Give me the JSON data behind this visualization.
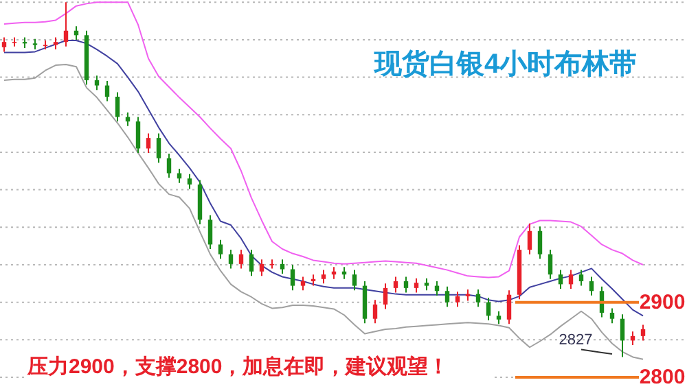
{
  "chart_data": {
    "type": "candlestick",
    "title": "现货白银4小时布林带",
    "annotations": [
      "压力2900，支撑2800，加息在即，建议观望！",
      "2827"
    ],
    "categories": [
      null,
      null,
      null,
      null,
      null,
      null,
      null,
      null,
      null,
      null,
      null,
      null,
      null,
      null,
      null,
      null,
      null,
      null,
      null,
      null,
      null,
      null,
      null,
      null,
      null,
      null,
      null,
      null,
      null,
      null,
      null,
      null,
      null,
      null,
      null,
      null,
      null,
      null,
      null,
      null,
      null,
      null,
      null,
      null,
      null,
      null,
      null,
      null,
      null,
      null,
      null,
      null,
      null,
      null,
      null,
      null,
      null,
      null,
      null,
      null,
      null,
      null,
      null
    ],
    "ohlc": [
      [
        3240,
        3253,
        3234,
        3247
      ],
      [
        3247,
        3253,
        3241,
        3247
      ],
      [
        3247,
        3253,
        3239,
        3245
      ],
      [
        3245,
        3251,
        3237,
        3243
      ],
      [
        3243,
        3249,
        3237,
        3243
      ],
      [
        3243,
        3253,
        3237,
        3247
      ],
      [
        3247,
        3300,
        3241,
        3262
      ],
      [
        3262,
        3268,
        3250,
        3256
      ],
      [
        3256,
        3262,
        3190,
        3196
      ],
      [
        3196,
        3202,
        3183,
        3189
      ],
      [
        3189,
        3195,
        3168,
        3174
      ],
      [
        3174,
        3180,
        3141,
        3147
      ],
      [
        3147,
        3153,
        3135,
        3141
      ],
      [
        3141,
        3147,
        3099,
        3105
      ],
      [
        3105,
        3125,
        3099,
        3119
      ],
      [
        3119,
        3125,
        3086,
        3092
      ],
      [
        3092,
        3098,
        3066,
        3072
      ],
      [
        3072,
        3078,
        3059,
        3065
      ],
      [
        3065,
        3071,
        3051,
        3057
      ],
      [
        3057,
        3063,
        3004,
        3010
      ],
      [
        3010,
        3016,
        2971,
        2977
      ],
      [
        2977,
        2983,
        2958,
        2964
      ],
      [
        2964,
        2970,
        2945,
        2951
      ],
      [
        2951,
        2970,
        2945,
        2964
      ],
      [
        2964,
        2970,
        2935,
        2941
      ],
      [
        2941,
        2957,
        2935,
        2951
      ],
      [
        2951,
        2957,
        2945,
        2951
      ],
      [
        2951,
        2957,
        2938,
        2944
      ],
      [
        2944,
        2950,
        2916,
        2922
      ],
      [
        2922,
        2934,
        2916,
        2928
      ],
      [
        2928,
        2937,
        2922,
        2931
      ],
      [
        2931,
        2943,
        2925,
        2937
      ],
      [
        2937,
        2947,
        2931,
        2941
      ],
      [
        2941,
        2947,
        2931,
        2937
      ],
      [
        2937,
        2943,
        2916,
        2922
      ],
      [
        2922,
        2928,
        2872,
        2878
      ],
      [
        2878,
        2903,
        2872,
        2897
      ],
      [
        2897,
        2925,
        2891,
        2919
      ],
      [
        2919,
        2934,
        2913,
        2928
      ],
      [
        2928,
        2934,
        2913,
        2919
      ],
      [
        2919,
        2932,
        2913,
        2926
      ],
      [
        2926,
        2932,
        2916,
        2922
      ],
      [
        2922,
        2928,
        2909,
        2915
      ],
      [
        2915,
        2921,
        2894,
        2900
      ],
      [
        2900,
        2914,
        2894,
        2908
      ],
      [
        2908,
        2917,
        2902,
        2911
      ],
      [
        2911,
        2917,
        2894,
        2900
      ],
      [
        2900,
        2906,
        2876,
        2882
      ],
      [
        2882,
        2888,
        2871,
        2877
      ],
      [
        2877,
        2916,
        2871,
        2910
      ],
      [
        2910,
        2976,
        2904,
        2970
      ],
      [
        2970,
        3005,
        2964,
        2995
      ],
      [
        2995,
        3001,
        2958,
        2964
      ],
      [
        2964,
        2970,
        2931,
        2937
      ],
      [
        2937,
        2943,
        2918,
        2924
      ],
      [
        2924,
        2943,
        2918,
        2937
      ],
      [
        2937,
        2943,
        2922,
        2928
      ],
      [
        2928,
        2934,
        2909,
        2915
      ],
      [
        2915,
        2921,
        2880,
        2886
      ],
      [
        2886,
        2892,
        2872,
        2878
      ],
      [
        2878,
        2884,
        2827,
        2849
      ],
      [
        2849,
        2861,
        2843,
        2855
      ],
      [
        2855,
        2870,
        2849,
        2864
      ]
    ],
    "colors": [
      "#e8202a",
      "#e8202a",
      "#1a8c1a",
      "#1a8c1a",
      "#e8202a",
      "#e8202a",
      "#e8202a",
      "#1a8c1a",
      "#1a8c1a",
      "#1a8c1a",
      "#1a8c1a",
      "#1a8c1a",
      "#1a8c1a",
      "#1a8c1a",
      "#e8202a",
      "#1a8c1a",
      "#1a8c1a",
      "#1a8c1a",
      "#1a8c1a",
      "#1a8c1a",
      "#1a8c1a",
      "#1a8c1a",
      "#1a8c1a",
      "#e8202a",
      "#1a8c1a",
      "#e8202a",
      "#e8202a",
      "#1a8c1a",
      "#1a8c1a",
      "#e8202a",
      "#e8202a",
      "#e8202a",
      "#e8202a",
      "#1a8c1a",
      "#1a8c1a",
      "#1a8c1a",
      "#e8202a",
      "#e8202a",
      "#e8202a",
      "#1a8c1a",
      "#e8202a",
      "#1a8c1a",
      "#1a8c1a",
      "#1a8c1a",
      "#e8202a",
      "#e8202a",
      "#1a8c1a",
      "#1a8c1a",
      "#1a8c1a",
      "#e8202a",
      "#e8202a",
      "#e8202a",
      "#1a8c1a",
      "#1a8c1a",
      "#1a8c1a",
      "#e8202a",
      "#1a8c1a",
      "#1a8c1a",
      "#1a8c1a",
      "#1a8c1a",
      "#1a8c1a",
      "#e8202a",
      "#e8202a"
    ],
    "series": [
      {
        "type": "line",
        "color": "#f060f0",
        "values": [
          3271,
          3272,
          3273,
          3273,
          3274,
          3276,
          3285,
          3295,
          3298,
          3300,
          3300,
          3300,
          3300,
          3270,
          3225,
          3201,
          3187,
          3173,
          3160,
          3147,
          3132,
          3118,
          3105,
          3075,
          3039,
          3009,
          2981,
          2971,
          2965,
          2961,
          2956,
          2954,
          2952,
          2951,
          2952,
          2953,
          2954,
          2955,
          2954,
          2953,
          2952,
          2949,
          2946,
          2943,
          2939,
          2935,
          2934,
          2933,
          2934,
          2942,
          2987,
          3004,
          3009,
          3009,
          3008,
          3007,
          3001,
          2989,
          2977,
          2970,
          2965,
          2956,
          2950
        ]
      },
      {
        "type": "line",
        "color": "#4040a0",
        "values": [
          3233,
          3233,
          3233,
          3234,
          3239,
          3244,
          3249,
          3249,
          3245,
          3237,
          3228,
          3218,
          3200,
          3181,
          3157,
          3133,
          3112,
          3096,
          3079,
          3060,
          3032,
          3008,
          3003,
          2985,
          2962,
          2949,
          2940,
          2934,
          2931,
          2928,
          2924,
          2921,
          2919,
          2919,
          2919,
          2917,
          2915,
          2913,
          2911,
          2910,
          2910,
          2910,
          2910,
          2910,
          2910,
          2910,
          2908,
          2903,
          2901,
          2903,
          2908,
          2920,
          2924,
          2928,
          2932,
          2935,
          2940,
          2945,
          2931,
          2918,
          2904,
          2890,
          2882
        ]
      },
      {
        "type": "line",
        "color": "#a0a0a0",
        "values": [
          3196,
          3197,
          3197,
          3199,
          3209,
          3216,
          3217,
          3214,
          3186,
          3173,
          3156,
          3139,
          3120,
          3099,
          3079,
          3058,
          3044,
          3040,
          3025,
          2994,
          2964,
          2942,
          2924,
          2914,
          2907,
          2898,
          2892,
          2893,
          2896,
          2896,
          2895,
          2893,
          2891,
          2883,
          2870,
          2858,
          2861,
          2864,
          2865,
          2867,
          2868,
          2869,
          2870,
          2871,
          2872,
          2873,
          2872,
          2871,
          2869,
          2866,
          2852,
          2840,
          2848,
          2857,
          2868,
          2878,
          2888,
          2878,
          2860,
          2845,
          2834,
          2827,
          2824
        ]
      },
      {
        "type": "line",
        "color": "#303030",
        "values": [
          null,
          null,
          null,
          null,
          null,
          null,
          null,
          null,
          null,
          null,
          null,
          null,
          null,
          null,
          null,
          null,
          null,
          null,
          null,
          null,
          null,
          null,
          null,
          null,
          null,
          null,
          null,
          null,
          null,
          null,
          null,
          null,
          null,
          null,
          null,
          null,
          null,
          null,
          null,
          null,
          null,
          null,
          null,
          null,
          null,
          null,
          null,
          null,
          null,
          null,
          null,
          null,
          null,
          null,
          null,
          null,
          2837,
          2835,
          2833,
          2831,
          null,
          null,
          null
        ]
      }
    ],
    "yticks": [
      {
        "value": 2800,
        "label": "2800"
      },
      {
        "value": 2850,
        "label": null
      },
      {
        "value": 2900,
        "label": "2900"
      },
      {
        "value": 2950,
        "label": null
      },
      {
        "value": 3000,
        "label": null
      },
      {
        "value": 3050,
        "label": null
      },
      {
        "value": 3100,
        "label": null
      },
      {
        "value": 3150,
        "label": null
      },
      {
        "value": 3200,
        "label": null
      },
      {
        "value": 3250,
        "label": null
      },
      {
        "value": 3300,
        "label": null
      }
    ],
    "ylim": [
      2800,
      3300
    ],
    "grid": "y",
    "tick_labels": "y",
    "ref_lines": [
      {
        "axis": "y",
        "value": 2900,
        "color": "#f07820"
      },
      {
        "axis": "y",
        "value": 2800,
        "color": "#f07820"
      }
    ]
  }
}
